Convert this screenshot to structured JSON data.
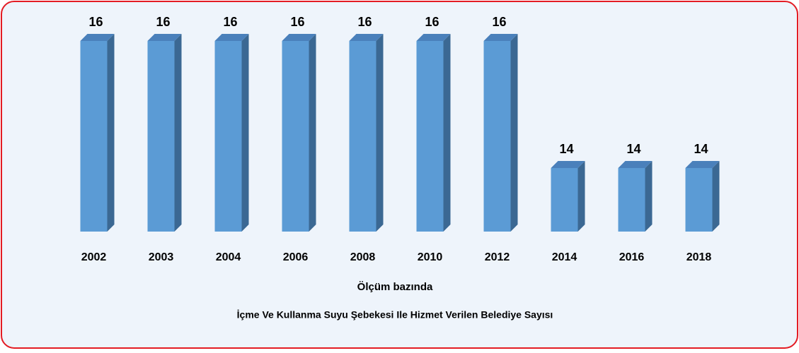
{
  "chart_data": {
    "type": "bar3d",
    "title": "İçme Ve Kullanma Suyu Şebekesi Ile Hizmet Verilen Belediye Sayısı",
    "x_label": "Ölçüm bazında",
    "categories": [
      "2002",
      "2003",
      "2004",
      "2006",
      "2008",
      "2010",
      "2012",
      "2014",
      "2016",
      "2018"
    ],
    "values": [
      16,
      16,
      16,
      16,
      16,
      16,
      16,
      14,
      14,
      14
    ],
    "color": "#5b9bd5",
    "ylim": [
      13,
      16
    ]
  }
}
